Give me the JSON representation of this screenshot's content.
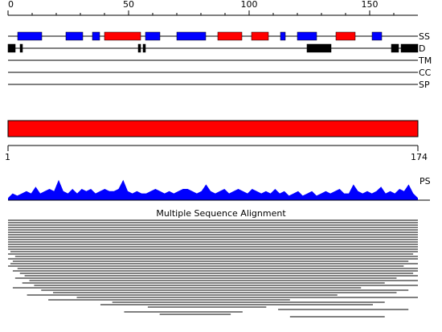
{
  "ruler": {
    "lim": [
      0,
      170
    ],
    "ticks": [
      0,
      50,
      100,
      150
    ],
    "minor_ticks": [
      10,
      20,
      30,
      40,
      60,
      70,
      80,
      90,
      110,
      120,
      130,
      140,
      160
    ]
  },
  "tracks": [
    {
      "label": "SS",
      "segments": [
        {
          "start": 4,
          "end": 14,
          "color": "#0000ff"
        },
        {
          "start": 24,
          "end": 31,
          "color": "#0000ff"
        },
        {
          "start": 35,
          "end": 38,
          "color": "#0000ff"
        },
        {
          "start": 40,
          "end": 55,
          "color": "#ff0000"
        },
        {
          "start": 57,
          "end": 63,
          "color": "#0000ff"
        },
        {
          "start": 70,
          "end": 82,
          "color": "#0000ff"
        },
        {
          "start": 87,
          "end": 97,
          "color": "#ff0000"
        },
        {
          "start": 101,
          "end": 108,
          "color": "#ff0000"
        },
        {
          "start": 113,
          "end": 115,
          "color": "#0000ff"
        },
        {
          "start": 120,
          "end": 128,
          "color": "#0000ff"
        },
        {
          "start": 136,
          "end": 144,
          "color": "#ff0000"
        },
        {
          "start": 151,
          "end": 155,
          "color": "#0000ff"
        }
      ]
    },
    {
      "label": "D",
      "segments": [
        {
          "start": 0,
          "end": 3,
          "color": "#000000"
        },
        {
          "start": 5,
          "end": 6,
          "color": "#000000"
        },
        {
          "start": 54,
          "end": 55,
          "color": "#000000"
        },
        {
          "start": 56,
          "end": 57,
          "color": "#000000"
        },
        {
          "start": 124,
          "end": 134,
          "color": "#000000"
        },
        {
          "start": 159,
          "end": 162,
          "color": "#000000"
        },
        {
          "start": 163,
          "end": 170,
          "color": "#000000"
        }
      ]
    },
    {
      "label": "TM",
      "segments": []
    },
    {
      "label": "CC",
      "segments": []
    },
    {
      "label": "SP",
      "segments": []
    }
  ],
  "sequence": {
    "start": 1,
    "end": 174,
    "color": "#ff0000"
  },
  "ps": {
    "label": "PS",
    "color": "#0000ff",
    "lim": [
      0,
      10
    ],
    "values": [
      1,
      3,
      2,
      3,
      4,
      3,
      6,
      3,
      4,
      5,
      4,
      9,
      4,
      3,
      5,
      3,
      5,
      4,
      5,
      3,
      4,
      5,
      4,
      4,
      5,
      9,
      4,
      3,
      4,
      3,
      3,
      4,
      5,
      4,
      3,
      4,
      3,
      4,
      5,
      5,
      4,
      3,
      4,
      7,
      4,
      3,
      4,
      5,
      3,
      4,
      5,
      4,
      3,
      5,
      4,
      3,
      4,
      3,
      5,
      3,
      4,
      2,
      3,
      4,
      2,
      3,
      4,
      2,
      3,
      4,
      3,
      4,
      5,
      3,
      3,
      7,
      4,
      3,
      4,
      3,
      4,
      6,
      3,
      4,
      3,
      5,
      4,
      7,
      3,
      1
    ]
  },
  "msa": {
    "title": "Multiple Sequence Alignment",
    "rows": [
      [
        1,
        174
      ],
      [
        1,
        174
      ],
      [
        1,
        174
      ],
      [
        1,
        174
      ],
      [
        1,
        174
      ],
      [
        1,
        174
      ],
      [
        1,
        174
      ],
      [
        1,
        174
      ],
      [
        1,
        174
      ],
      [
        1,
        174
      ],
      [
        1,
        174
      ],
      [
        1,
        174
      ],
      [
        1,
        174
      ],
      [
        2,
        174
      ],
      [
        1,
        172
      ],
      [
        4,
        174
      ],
      [
        1,
        174
      ],
      [
        3,
        170
      ],
      [
        2,
        174
      ],
      [
        1,
        168
      ],
      [
        5,
        174
      ],
      [
        3,
        174
      ],
      [
        6,
        172
      ],
      [
        8,
        174
      ],
      [
        4,
        165
      ],
      [
        10,
        174
      ],
      [
        7,
        160
      ],
      [
        12,
        174
      ],
      [
        3,
        150
      ],
      [
        15,
        170
      ],
      [
        20,
        165
      ],
      [
        9,
        140
      ],
      [
        30,
        174
      ],
      [
        18,
        120
      ],
      [
        45,
        160
      ],
      [
        40,
        155
      ],
      [
        60,
        110
      ],
      [
        115,
        170
      ],
      [
        50,
        100
      ],
      [
        65,
        95
      ],
      [
        120,
        160
      ]
    ]
  }
}
